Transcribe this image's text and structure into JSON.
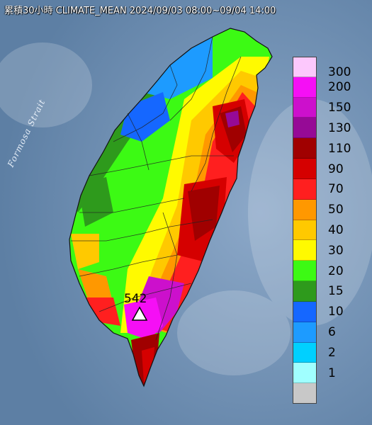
{
  "title": "累積30小時 CLIMATE_MEAN 2024/09/03 08:00~09/04 14:00",
  "sea_label": "Formosa Strait",
  "max_station": {
    "value": "542",
    "icon": "triangle-marker-icon"
  },
  "legend": {
    "levels": [
      {
        "label": "300",
        "color": "#fcc8fc"
      },
      {
        "label": "200",
        "color": "#f50ff5"
      },
      {
        "label": "150",
        "color": "#cc10cc"
      },
      {
        "label": "130",
        "color": "#960a96"
      },
      {
        "label": "110",
        "color": "#a00000"
      },
      {
        "label": "90",
        "color": "#d50000"
      },
      {
        "label": "70",
        "color": "#ff1f1f"
      },
      {
        "label": "50",
        "color": "#ff9800"
      },
      {
        "label": "40",
        "color": "#ffc900"
      },
      {
        "label": "30",
        "color": "#fffa00"
      },
      {
        "label": "20",
        "color": "#3cfa14"
      },
      {
        "label": "15",
        "color": "#2e9a1c"
      },
      {
        "label": "10",
        "color": "#1567ff"
      },
      {
        "label": "6",
        "color": "#1d9bff"
      },
      {
        "label": "2",
        "color": "#00d0ff"
      },
      {
        "label": "1",
        "color": "#a0ffff"
      },
      {
        "label": "",
        "color": "#c8c8c8"
      }
    ]
  }
}
